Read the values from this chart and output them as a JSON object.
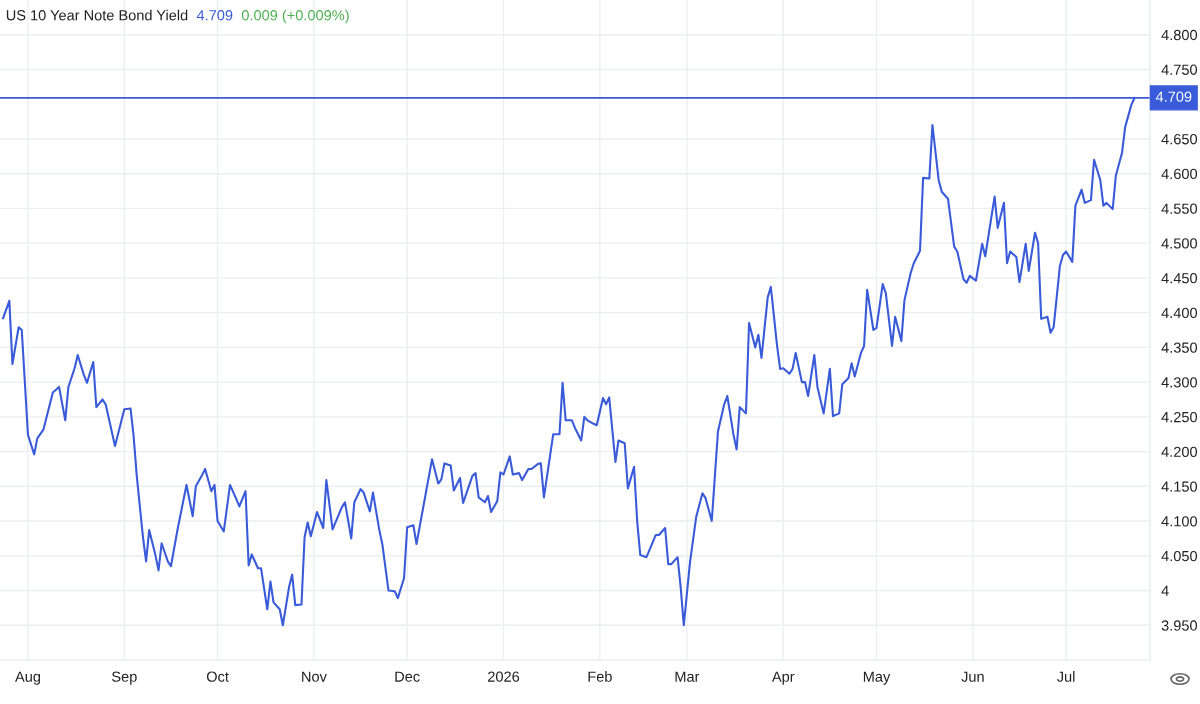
{
  "chart_data": {
    "type": "line",
    "title": "US 10 Year Note Bond Yield",
    "annotations": [
      "4.709",
      "0.009 (+0.009%)"
    ],
    "x": [
      "2025-07-24",
      "2025-07-26",
      "2025-07-27",
      "2025-07-29",
      "2025-07-30",
      "2025-08-01",
      "2025-08-03",
      "2025-08-04",
      "2025-08-06",
      "2025-08-09",
      "2025-08-11",
      "2025-08-13",
      "2025-08-14",
      "2025-08-16",
      "2025-08-17",
      "2025-08-19",
      "2025-08-20",
      "2025-08-22",
      "2025-08-23",
      "2025-08-25",
      "2025-08-26",
      "2025-08-29",
      "2025-09-01",
      "2025-09-03",
      "2025-09-04",
      "2025-09-05",
      "2025-09-07",
      "2025-09-08",
      "2025-09-09",
      "2025-09-11",
      "2025-09-12",
      "2025-09-13",
      "2025-09-15",
      "2025-09-16",
      "2025-09-18",
      "2025-09-21",
      "2025-09-23",
      "2025-09-24",
      "2025-09-26",
      "2025-09-27",
      "2025-09-29",
      "2025-09-30",
      "2025-10-01",
      "2025-10-03",
      "2025-10-05",
      "2025-10-07",
      "2025-10-08",
      "2025-10-10",
      "2025-10-11",
      "2025-10-12",
      "2025-10-14",
      "2025-10-15",
      "2025-10-17",
      "2025-10-18",
      "2025-10-19",
      "2025-10-21",
      "2025-10-22",
      "2025-10-24",
      "2025-10-25",
      "2025-10-26",
      "2025-10-28",
      "2025-10-29",
      "2025-10-30",
      "2025-10-31",
      "2025-11-02",
      "2025-11-04",
      "2025-11-05",
      "2025-11-07",
      "2025-11-10",
      "2025-11-11",
      "2025-11-13",
      "2025-11-14",
      "2025-11-16",
      "2025-11-17",
      "2025-11-19",
      "2025-11-20",
      "2025-11-22",
      "2025-11-23",
      "2025-11-25",
      "2025-11-27",
      "2025-11-28",
      "2025-11-30",
      "2025-12-01",
      "2025-12-03",
      "2025-12-04",
      "2025-12-07",
      "2025-12-09",
      "2025-12-11",
      "2025-12-12",
      "2025-12-13",
      "2025-12-15",
      "2025-12-16",
      "2025-12-18",
      "2025-12-19",
      "2025-12-22",
      "2025-12-23",
      "2025-12-24",
      "2025-12-26",
      "2025-12-27",
      "2025-12-28",
      "2025-12-30",
      "2025-12-31",
      "2026-01-01",
      "2026-01-03",
      "2026-01-04",
      "2026-01-06",
      "2026-01-07",
      "2026-01-09",
      "2026-01-10",
      "2026-01-12",
      "2026-01-13",
      "2026-01-14",
      "2026-01-17",
      "2026-01-19",
      "2026-01-20",
      "2026-01-21",
      "2026-01-23",
      "2026-01-24",
      "2026-01-26",
      "2026-01-27",
      "2026-01-28",
      "2026-01-30",
      "2026-01-31",
      "2026-02-02",
      "2026-02-03",
      "2026-02-04",
      "2026-02-06",
      "2026-02-07",
      "2026-02-09",
      "2026-02-10",
      "2026-02-12",
      "2026-02-13",
      "2026-02-14",
      "2026-02-16",
      "2026-02-19",
      "2026-02-20",
      "2026-02-22",
      "2026-02-23",
      "2026-02-24",
      "2026-02-26",
      "2026-02-27",
      "2026-02-28",
      "2026-03-02",
      "2026-03-04",
      "2026-03-06",
      "2026-03-07",
      "2026-03-09",
      "2026-03-11",
      "2026-03-13",
      "2026-03-14",
      "2026-03-16",
      "2026-03-17",
      "2026-03-18",
      "2026-03-20",
      "2026-03-21",
      "2026-03-23",
      "2026-03-24",
      "2026-03-25",
      "2026-03-27",
      "2026-03-28",
      "2026-03-30",
      "2026-03-31",
      "2026-04-01",
      "2026-04-03",
      "2026-04-04",
      "2026-04-05",
      "2026-04-07",
      "2026-04-08",
      "2026-04-09",
      "2026-04-11",
      "2026-04-12",
      "2026-04-14",
      "2026-04-16",
      "2026-04-17",
      "2026-04-19",
      "2026-04-20",
      "2026-04-22",
      "2026-04-23",
      "2026-04-24",
      "2026-04-26",
      "2026-04-27",
      "2026-04-28",
      "2026-04-30",
      "2026-05-01",
      "2026-05-03",
      "2026-05-04",
      "2026-05-06",
      "2026-05-07",
      "2026-05-09",
      "2026-05-10",
      "2026-05-12",
      "2026-05-13",
      "2026-05-15",
      "2026-05-16",
      "2026-05-18",
      "2026-05-19",
      "2026-05-21",
      "2026-05-22",
      "2026-05-24",
      "2026-05-26",
      "2026-05-27",
      "2026-05-29",
      "2026-05-30",
      "2026-05-31",
      "2026-06-02",
      "2026-06-04",
      "2026-06-05",
      "2026-06-08",
      "2026-06-09",
      "2026-06-11",
      "2026-06-12",
      "2026-06-13",
      "2026-06-15",
      "2026-06-16",
      "2026-06-18",
      "2026-06-19",
      "2026-06-21",
      "2026-06-22",
      "2026-06-23",
      "2026-06-25",
      "2026-06-26",
      "2026-06-27",
      "2026-06-29",
      "2026-06-30",
      "2026-07-01",
      "2026-07-03",
      "2026-07-04",
      "2026-07-06",
      "2026-07-07",
      "2026-07-09",
      "2026-07-10",
      "2026-07-12",
      "2026-07-13",
      "2026-07-14",
      "2026-07-16",
      "2026-07-17",
      "2026-07-19",
      "2026-07-20",
      "2026-07-22",
      "2026-07-23"
    ],
    "series": [
      {
        "color": "#3a5bd9",
        "values": [
          4.392,
          4.417,
          4.326,
          4.379,
          4.375,
          4.224,
          4.196,
          4.219,
          4.232,
          4.285,
          4.293,
          4.245,
          4.293,
          4.32,
          4.339,
          4.31,
          4.299,
          4.329,
          4.264,
          4.275,
          4.268,
          4.208,
          4.261,
          4.262,
          4.222,
          4.165,
          4.077,
          4.042,
          4.087,
          4.051,
          4.029,
          4.068,
          4.042,
          4.035,
          4.085,
          4.152,
          4.107,
          4.15,
          4.166,
          4.175,
          4.143,
          4.152,
          4.1,
          4.085,
          4.152,
          4.132,
          4.121,
          4.143,
          4.036,
          4.052,
          4.032,
          4.032,
          3.973,
          4.013,
          3.983,
          3.973,
          3.95,
          4.005,
          4.023,
          3.979,
          3.98,
          4.077,
          4.098,
          4.078,
          4.113,
          4.09,
          4.159,
          4.088,
          4.12,
          4.127,
          4.075,
          4.127,
          4.146,
          4.141,
          4.114,
          4.141,
          4.088,
          4.067,
          4.0,
          3.999,
          3.989,
          4.018,
          4.091,
          4.094,
          4.067,
          4.14,
          4.189,
          4.154,
          4.16,
          4.183,
          4.18,
          4.144,
          4.162,
          4.126,
          4.165,
          4.169,
          4.134,
          4.127,
          4.136,
          4.113,
          4.129,
          4.17,
          4.167,
          4.193,
          4.167,
          4.169,
          4.159,
          4.175,
          4.175,
          4.182,
          4.183,
          4.134,
          4.225,
          4.225,
          4.299,
          4.245,
          4.245,
          4.234,
          4.216,
          4.25,
          4.245,
          4.24,
          4.238,
          4.277,
          4.268,
          4.278,
          4.185,
          4.216,
          4.212,
          4.147,
          4.178,
          4.1,
          4.051,
          4.048,
          4.08,
          4.08,
          4.09,
          4.038,
          4.038,
          4.048,
          4.005,
          3.95,
          4.041,
          4.106,
          4.14,
          4.133,
          4.1,
          4.229,
          4.268,
          4.28,
          4.224,
          4.203,
          4.264,
          4.255,
          4.385,
          4.35,
          4.368,
          4.335,
          4.422,
          4.437,
          4.353,
          4.319,
          4.32,
          4.312,
          4.319,
          4.342,
          4.3,
          4.3,
          4.28,
          4.339,
          4.293,
          4.255,
          4.319,
          4.251,
          4.255,
          4.297,
          4.306,
          4.327,
          4.308,
          4.342,
          4.352,
          4.433,
          4.375,
          4.378,
          4.441,
          4.428,
          4.352,
          4.394,
          4.359,
          4.418,
          4.457,
          4.471,
          4.489,
          4.594,
          4.593,
          4.67,
          4.591,
          4.574,
          4.564,
          4.495,
          4.488,
          4.448,
          4.443,
          4.453,
          4.446,
          4.499,
          4.481,
          4.567,
          4.522,
          4.558,
          4.471,
          4.488,
          4.48,
          4.444,
          4.499,
          4.46,
          4.515,
          4.5,
          4.391,
          4.394,
          4.371,
          4.379,
          4.467,
          4.483,
          4.488,
          4.473,
          4.554,
          4.577,
          4.558,
          4.562,
          4.62,
          4.591,
          4.554,
          4.558,
          4.549,
          4.597,
          4.63,
          4.667,
          4.699,
          4.709
        ]
      }
    ],
    "xlim": [
      "2025-07-23",
      "2026-07-28"
    ],
    "xticks": [
      {
        "value": "2025-08-01",
        "label": "Aug"
      },
      {
        "value": "2025-09-01",
        "label": "Sep"
      },
      {
        "value": "2025-10-01",
        "label": "Oct"
      },
      {
        "value": "2025-11-01",
        "label": "Nov"
      },
      {
        "value": "2025-12-01",
        "label": "Dec"
      },
      {
        "value": "2026-01-01",
        "label": "2026"
      },
      {
        "value": "2026-02-01",
        "label": "Feb"
      },
      {
        "value": "2026-03-01",
        "label": "Mar"
      },
      {
        "value": "2026-04-01",
        "label": "Apr"
      },
      {
        "value": "2026-05-01",
        "label": "May"
      },
      {
        "value": "2026-06-01",
        "label": "Jun"
      },
      {
        "value": "2026-07-01",
        "label": "Jul"
      }
    ],
    "ylim": [
      3.9,
      4.85
    ],
    "yticks": [
      {
        "value": 3.95,
        "label": "3.950"
      },
      4,
      {
        "value": 4.05,
        "label": "4.050"
      },
      {
        "value": 4.1,
        "label": "4.100"
      },
      {
        "value": 4.15,
        "label": "4.150"
      },
      {
        "value": 4.2,
        "label": "4.200"
      },
      {
        "value": 4.25,
        "label": "4.250"
      },
      {
        "value": 4.3,
        "label": "4.300"
      },
      {
        "value": 4.35,
        "label": "4.350"
      },
      {
        "value": 4.4,
        "label": "4.400"
      },
      {
        "value": 4.45,
        "label": "4.450"
      },
      {
        "value": 4.5,
        "label": "4.500"
      },
      {
        "value": 4.55,
        "label": "4.550"
      },
      {
        "value": 4.6,
        "label": "4.600"
      },
      {
        "value": 4.65,
        "label": "4.650"
      },
      {
        "value": 4.75,
        "label": "4.750"
      },
      {
        "value": 4.8,
        "label": "4.800"
      }
    ],
    "ref_lines": [
      {
        "axis": "y",
        "value": 4.709,
        "label": "4.709",
        "color": "#3a5bd9"
      }
    ],
    "grid": true,
    "legend": false,
    "marker": "none",
    "line_style": "solid"
  }
}
